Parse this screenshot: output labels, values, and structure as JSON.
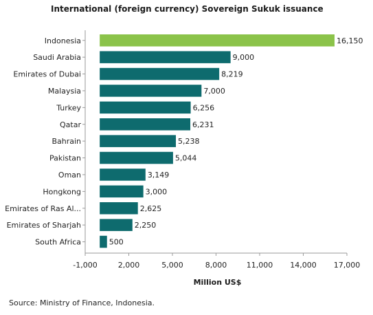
{
  "chart_data": {
    "type": "bar",
    "orientation": "horizontal",
    "title": "International (foreign currency) Sovereign Sukuk issuance",
    "xlabel": "Million US$",
    "ylabel": "",
    "categories": [
      "Indonesia",
      "Saudi Arabia",
      "Emirates of Dubai",
      "Malaysia",
      "Turkey",
      "Qatar",
      "Bahrain",
      "Pakistan",
      "Oman",
      "Hongkong",
      "Emirates of Ras Al...",
      "Emirates of Sharjah",
      "South Africa"
    ],
    "values": [
      16150,
      9000,
      8219,
      7000,
      6256,
      6231,
      5238,
      5044,
      3149,
      3000,
      2625,
      2250,
      500
    ],
    "value_labels": [
      "16,150",
      "9,000",
      "8,219",
      "7,000",
      "6,256",
      "6,231",
      "5,238",
      "5,044",
      "3,149",
      "3,000",
      "2,625",
      "2,250",
      "500"
    ],
    "xlim": [
      -1000,
      17000
    ],
    "ticks": [
      -1000,
      2000,
      5000,
      8000,
      11000,
      14000,
      17000
    ],
    "tick_labels": [
      "-1,000",
      "2,000",
      "5,000",
      "8,000",
      "11,000",
      "14,000",
      "17,000"
    ],
    "grid": false,
    "colors": {
      "highlight": "#8bc34a",
      "bar": "#0e6b6e",
      "axis": "#999999"
    },
    "highlight_index": 0
  },
  "footer": {
    "source": "Source: Ministry of Finance, Indonesia."
  }
}
